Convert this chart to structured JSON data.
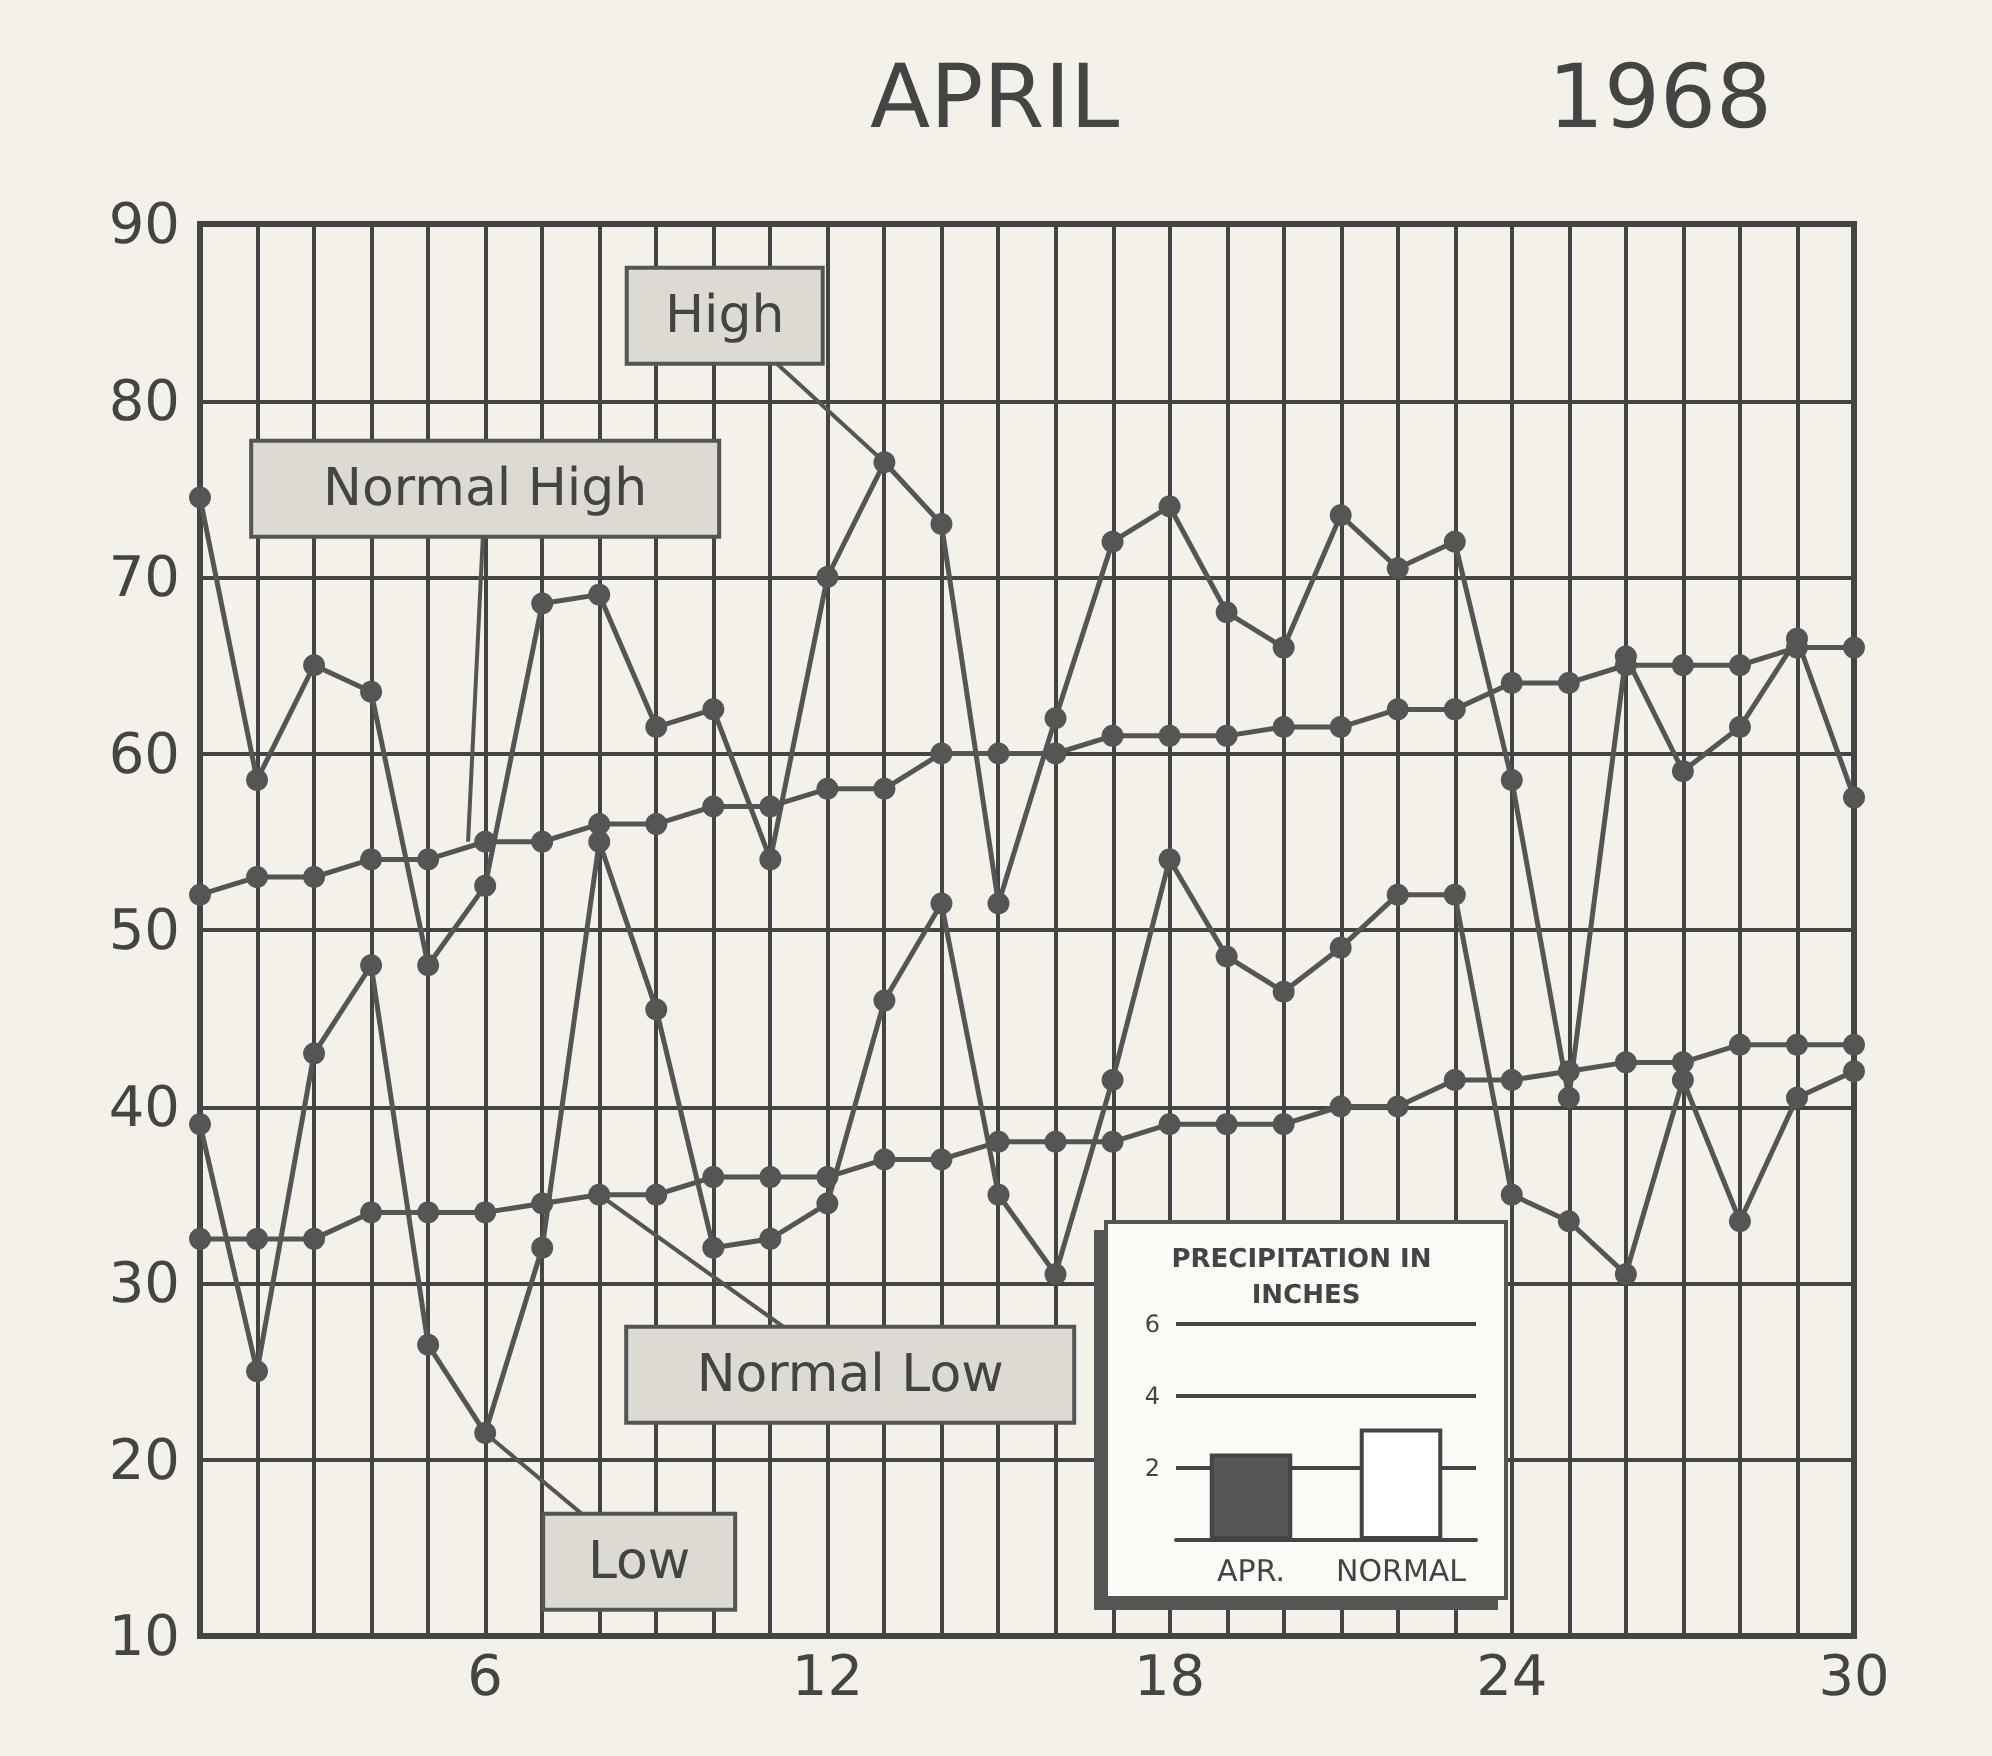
{
  "chart_data": [
    {
      "type": "line",
      "title": "APRIL",
      "subtitle": "1968",
      "x": [
        1,
        2,
        3,
        4,
        5,
        6,
        7,
        8,
        9,
        10,
        11,
        12,
        13,
        14,
        15,
        16,
        17,
        18,
        19,
        20,
        21,
        22,
        23,
        24,
        25,
        26,
        27,
        28,
        29,
        30
      ],
      "series": [
        {
          "name": "High",
          "color": "#555555",
          "values": [
            74.5,
            58.5,
            65,
            63.5,
            48,
            52.5,
            68.5,
            69,
            61.5,
            62.5,
            54,
            70,
            76.5,
            73,
            51.5,
            62,
            72,
            74,
            68,
            66,
            73.5,
            70.5,
            72,
            58.5,
            40.5,
            65.5,
            59,
            61.5,
            66.5,
            57.5
          ]
        },
        {
          "name": "Normal High",
          "color": "#555555",
          "values": [
            52,
            53,
            53,
            54,
            54,
            55,
            55,
            56,
            56,
            57,
            57,
            58,
            58,
            60,
            60,
            60,
            61,
            61,
            61,
            61.5,
            61.5,
            62.5,
            62.5,
            64,
            64,
            65,
            65,
            65,
            66,
            66
          ]
        },
        {
          "name": "Normal Low",
          "color": "#555555",
          "values": [
            32.5,
            32.5,
            32.5,
            34,
            34,
            34,
            34.5,
            35,
            35,
            36,
            36,
            36,
            37,
            37,
            38,
            38,
            38,
            39,
            39,
            39,
            40,
            40,
            41.5,
            41.5,
            42,
            42.5,
            42.5,
            43.5,
            43.5,
            43.5
          ]
        },
        {
          "name": "Low",
          "color": "#555555",
          "values": [
            39,
            25,
            43,
            48,
            26.5,
            21.5,
            32,
            55,
            45.5,
            32,
            32.5,
            34.5,
            46,
            51.5,
            35,
            30.5,
            41.5,
            54,
            48.5,
            46.5,
            49,
            52,
            52,
            35,
            33.5,
            30.5,
            41.5,
            33.5,
            40.5,
            42
          ]
        }
      ],
      "xlim": [
        1,
        30
      ],
      "xticks": [
        {
          "value": 1,
          "label": null
        },
        {
          "value": 2,
          "label": null
        },
        {
          "value": 3,
          "label": null
        },
        {
          "value": 4,
          "label": null
        },
        {
          "value": 5,
          "label": null
        },
        6,
        {
          "value": 7,
          "label": null
        },
        {
          "value": 8,
          "label": null
        },
        {
          "value": 9,
          "label": null
        },
        {
          "value": 10,
          "label": null
        },
        {
          "value": 11,
          "label": null
        },
        12,
        {
          "value": 13,
          "label": null
        },
        {
          "value": 14,
          "label": null
        },
        {
          "value": 15,
          "label": null
        },
        {
          "value": 16,
          "label": null
        },
        {
          "value": 17,
          "label": null
        },
        18,
        {
          "value": 19,
          "label": null
        },
        {
          "value": 20,
          "label": null
        },
        {
          "value": 21,
          "label": null
        },
        {
          "value": 22,
          "label": null
        },
        {
          "value": 23,
          "label": null
        },
        24,
        {
          "value": 25,
          "label": null
        },
        {
          "value": 26,
          "label": null
        },
        {
          "value": 27,
          "label": null
        },
        {
          "value": 28,
          "label": null
        },
        {
          "value": 29,
          "label": null
        },
        30
      ],
      "ylim": [
        10,
        90
      ],
      "yticks": [
        10,
        20,
        30,
        40,
        50,
        60,
        70,
        80,
        90
      ],
      "grid": true,
      "legend": false,
      "marker": "circle",
      "line_style": "solid"
    },
    {
      "type": "bar",
      "title": "PRECIPITATION IN INCHES",
      "categories": [
        "APR.",
        "NORMAL"
      ],
      "values": [
        2.4,
        3.1
      ],
      "colors": [
        "#555555",
        "#ffffff"
      ],
      "ylim": [
        0,
        6
      ],
      "yticks": [
        2,
        4,
        6
      ],
      "grid": "y",
      "legend": false
    }
  ]
}
